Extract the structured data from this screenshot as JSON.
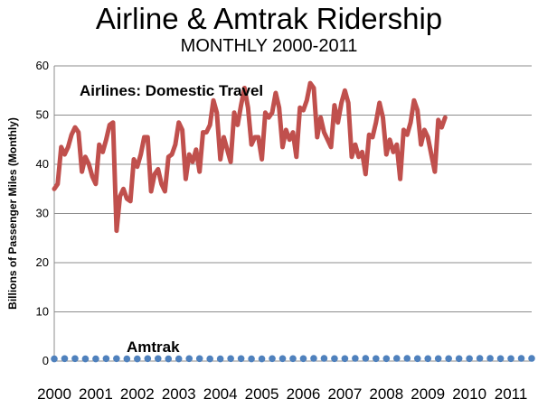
{
  "title": "Airline & Amtrak Ridership",
  "subtitle": "MONTHLY 2000-2011",
  "chart_data": {
    "type": "line",
    "ylabel": "Billions of Passenger Miles (Monthly)",
    "xlabel": "",
    "ylim": [
      0,
      60
    ],
    "yticks": [
      "0",
      "10",
      "20",
      "30",
      "40",
      "50",
      "60"
    ],
    "xlim": [
      2000,
      2011.5
    ],
    "x_tick_labels": [
      "2000",
      "2001",
      "2002",
      "2003",
      "2004",
      "2005",
      "2006",
      "2007",
      "2008",
      "2009",
      "2010",
      "2011"
    ],
    "grid": "horizontal",
    "annotations": [
      {
        "text": "Airlines: Domestic Travel",
        "series": "airlines"
      },
      {
        "text": "Amtrak",
        "series": "amtrak"
      }
    ],
    "series": [
      {
        "name": "Airlines: Domestic Travel",
        "color": "#c0504d",
        "style": "line",
        "start": 2000,
        "step_months": 1,
        "values": [
          35,
          36,
          43.5,
          42,
          43.5,
          46,
          47.5,
          46.5,
          38.5,
          41.5,
          40,
          37.5,
          36,
          44,
          42.5,
          45,
          48,
          48.5,
          26.5,
          33.5,
          35,
          33,
          32.5,
          41,
          39.5,
          42,
          45.5,
          45.5,
          34.5,
          38,
          39,
          36,
          34.5,
          41.5,
          42,
          44,
          48.5,
          47,
          37,
          42,
          40.5,
          43,
          38.5,
          46.5,
          46.5,
          48,
          53,
          50.5,
          41,
          45.5,
          43,
          40.5,
          50.5,
          48,
          52,
          55.5,
          51.5,
          44,
          45.5,
          45.5,
          41,
          50.5,
          49.5,
          50.5,
          54.5,
          51.5,
          43.5,
          47,
          45,
          46.5,
          41.5,
          51.5,
          51,
          53,
          56.5,
          55.5,
          45.5,
          49.5,
          46.5,
          45,
          43.5,
          52,
          48.5,
          52.5,
          55,
          52.5,
          41.5,
          44,
          41.5,
          42.5,
          38,
          46,
          45.5,
          48.5,
          52.5,
          49.5,
          42,
          45,
          42.5,
          44,
          37,
          47,
          46,
          48.5,
          53,
          51,
          44,
          47,
          45.5,
          42,
          38.5,
          49,
          47.5,
          49.5
        ]
      },
      {
        "name": "Amtrak",
        "color": "#4f81bd",
        "style": "dots",
        "start": 2000,
        "step_months": 3,
        "values": [
          0.45,
          0.5,
          0.5,
          0.45,
          0.45,
          0.5,
          0.5,
          0.45,
          0.45,
          0.5,
          0.5,
          0.45,
          0.45,
          0.5,
          0.5,
          0.45,
          0.45,
          0.5,
          0.5,
          0.45,
          0.45,
          0.5,
          0.5,
          0.5,
          0.5,
          0.55,
          0.55,
          0.5,
          0.5,
          0.55,
          0.55,
          0.5,
          0.5,
          0.55,
          0.55,
          0.5,
          0.5,
          0.5,
          0.5,
          0.5,
          0.5,
          0.55,
          0.55,
          0.5,
          0.5,
          0.55,
          0.55
        ]
      }
    ]
  }
}
